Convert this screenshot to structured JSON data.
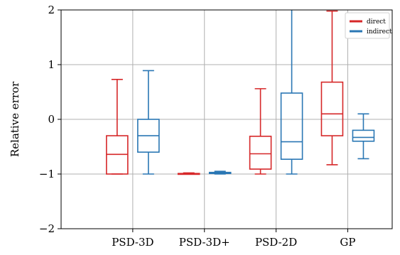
{
  "chart_data": {
    "type": "box",
    "title": "",
    "xlabel": "",
    "ylabel": "Relative error",
    "ylim": [
      -2,
      2
    ],
    "yticks": [
      2,
      1,
      0,
      -1,
      -2
    ],
    "ytick_labels": [
      "2",
      "1",
      "0",
      "−1",
      "−2"
    ],
    "grid": true,
    "legend_position": "top-right",
    "categories": [
      "PSD-3D",
      "PSD-3D+",
      "PSD-2D",
      "GP"
    ],
    "series": [
      {
        "name": "direct",
        "color": "#d62728",
        "boxes": [
          {
            "whislo": -1.0,
            "q1": -1.0,
            "med": -0.64,
            "q3": -0.3,
            "whishi": 0.73
          },
          {
            "whislo": -1.0,
            "q1": -1.0,
            "med": -1.0,
            "q3": -0.99,
            "whishi": -0.98
          },
          {
            "whislo": -1.0,
            "q1": -0.91,
            "med": -0.63,
            "q3": -0.31,
            "whishi": 0.56
          },
          {
            "whislo": -0.83,
            "q1": -0.3,
            "med": 0.1,
            "q3": 0.68,
            "whishi": 1.98
          }
        ]
      },
      {
        "name": "indirect",
        "color": "#2a77b4",
        "boxes": [
          {
            "whislo": -1.0,
            "q1": -0.6,
            "med": -0.3,
            "q3": 0.0,
            "whishi": 0.89
          },
          {
            "whislo": -1.0,
            "q1": -0.99,
            "med": -0.98,
            "q3": -0.97,
            "whishi": -0.95
          },
          {
            "whislo": -1.0,
            "q1": -0.73,
            "med": -0.41,
            "q3": 0.48,
            "whishi": 2.2
          },
          {
            "whislo": -0.72,
            "q1": -0.4,
            "med": -0.33,
            "q3": -0.2,
            "whishi": 0.1
          }
        ]
      }
    ]
  }
}
